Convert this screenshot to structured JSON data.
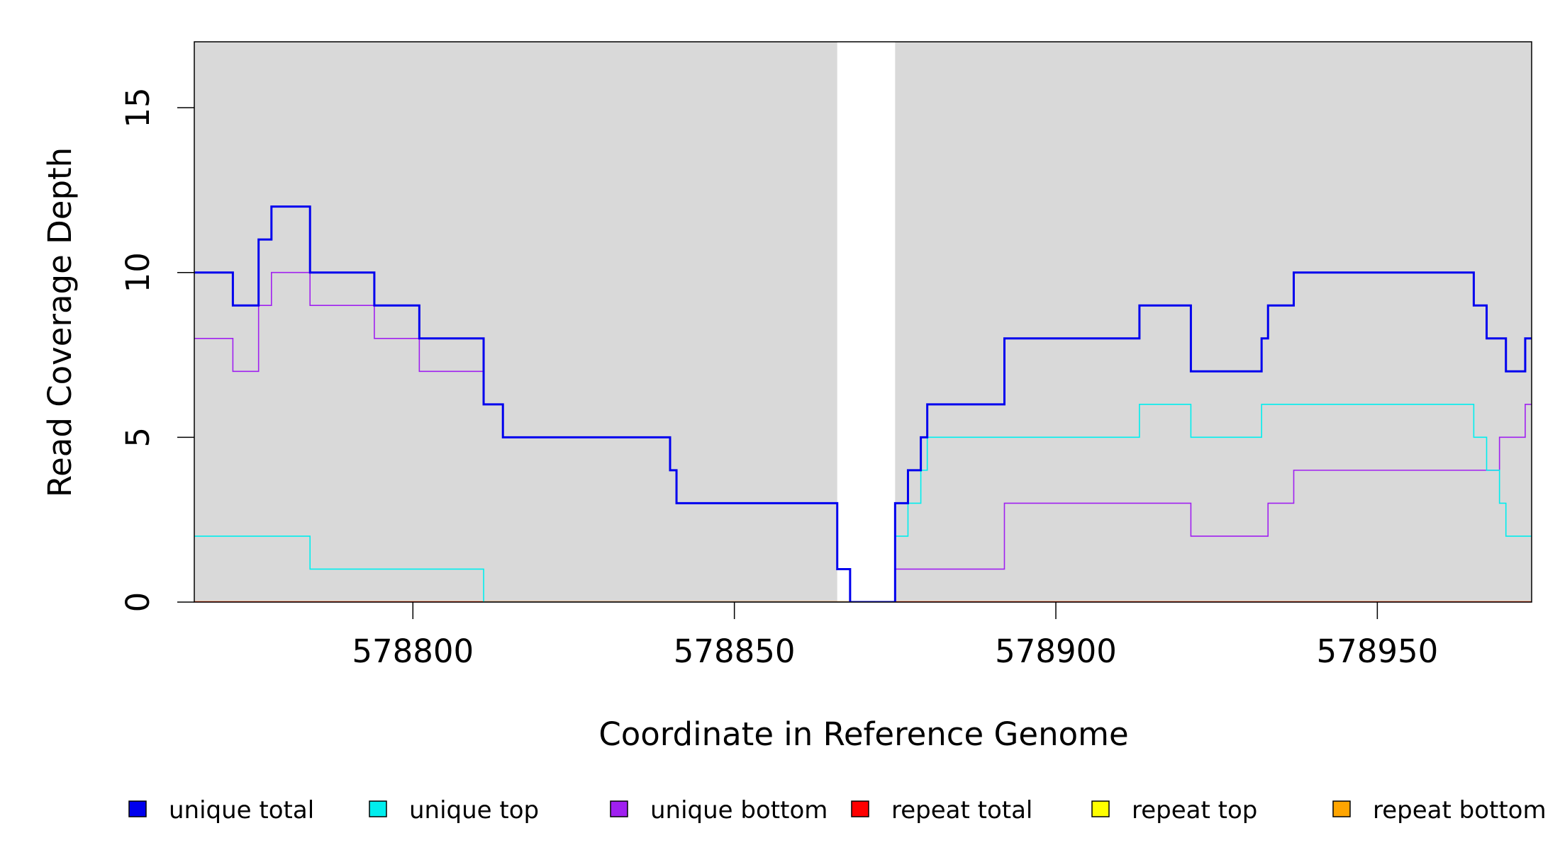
{
  "colors": {
    "panel_bg": "#d9d9d9",
    "gap_bg": "#ffffff",
    "unique_total": "#0000ee",
    "unique_top": "#00eeee",
    "unique_bottom": "#a020f0",
    "repeat_total": "#ff0000",
    "repeat_top": "#ffff00",
    "repeat_bottom": "#ffa500"
  },
  "chart_data": {
    "type": "line",
    "step": true,
    "xlabel": "Coordinate in Reference Genome",
    "ylabel": "Read Coverage Depth",
    "xlim": [
      578766,
      578974
    ],
    "ylim": [
      0,
      17
    ],
    "xticks": [
      578800,
      578850,
      578900,
      578950
    ],
    "xtick_labels": [
      "578800",
      "578850",
      "578900",
      "578950"
    ],
    "yticks": [
      0,
      5,
      10,
      15
    ],
    "ytick_labels": [
      "0",
      "5",
      "10",
      "15"
    ],
    "uncovered_region": [
      578866,
      578875
    ],
    "grid": false,
    "legend_position": "bottom",
    "series": [
      {
        "name": "unique total",
        "color_key": "unique_total",
        "x": [
          578766,
          578772,
          578776,
          578778,
          578784,
          578794,
          578801,
          578811,
          578814,
          578840,
          578841,
          578866,
          578868,
          578875,
          578877,
          578879,
          578880,
          578892,
          578913,
          578921,
          578932,
          578933,
          578937,
          578965,
          578967,
          578970,
          578973,
          578974
        ],
        "y": [
          10,
          9,
          11,
          12,
          10,
          9,
          8,
          6,
          5,
          4,
          3,
          1,
          0,
          3,
          4,
          5,
          6,
          8,
          9,
          7,
          8,
          9,
          10,
          9,
          8,
          7,
          8,
          8
        ]
      },
      {
        "name": "unique top",
        "color_key": "unique_top",
        "x": [
          578766,
          578784,
          578811,
          578866,
          578875,
          578877,
          578879,
          578880,
          578913,
          578921,
          578932,
          578965,
          578967,
          578969,
          578970,
          578974
        ],
        "y": [
          2,
          1,
          0,
          0,
          2,
          3,
          4,
          5,
          6,
          5,
          6,
          5,
          4,
          3,
          2,
          2
        ]
      },
      {
        "name": "unique bottom",
        "color_key": "unique_bottom",
        "x": [
          578766,
          578772,
          578776,
          578778,
          578784,
          578794,
          578801,
          578811,
          578814,
          578840,
          578841,
          578866,
          578868,
          578875,
          578892,
          578921,
          578933,
          578937,
          578969,
          578973,
          578974
        ],
        "y": [
          8,
          7,
          9,
          10,
          9,
          8,
          7,
          6,
          5,
          4,
          3,
          1,
          0,
          1,
          3,
          2,
          3,
          4,
          5,
          6,
          6
        ]
      },
      {
        "name": "repeat total",
        "color_key": "repeat_total",
        "x": [
          578766,
          578974
        ],
        "y": [
          0,
          0
        ]
      },
      {
        "name": "repeat top",
        "color_key": "repeat_top",
        "x": [
          578766,
          578974
        ],
        "y": [
          0,
          0
        ]
      },
      {
        "name": "repeat bottom",
        "color_key": "repeat_bottom",
        "x": [
          578766,
          578974
        ],
        "y": [
          0,
          0
        ]
      }
    ],
    "legend": [
      {
        "label": "unique total",
        "color_key": "unique_total"
      },
      {
        "label": "unique top",
        "color_key": "unique_top"
      },
      {
        "label": "unique bottom",
        "color_key": "unique_bottom"
      },
      {
        "label": "repeat total",
        "color_key": "repeat_total"
      },
      {
        "label": "repeat top",
        "color_key": "repeat_top"
      },
      {
        "label": "repeat bottom",
        "color_key": "repeat_bottom"
      }
    ]
  }
}
